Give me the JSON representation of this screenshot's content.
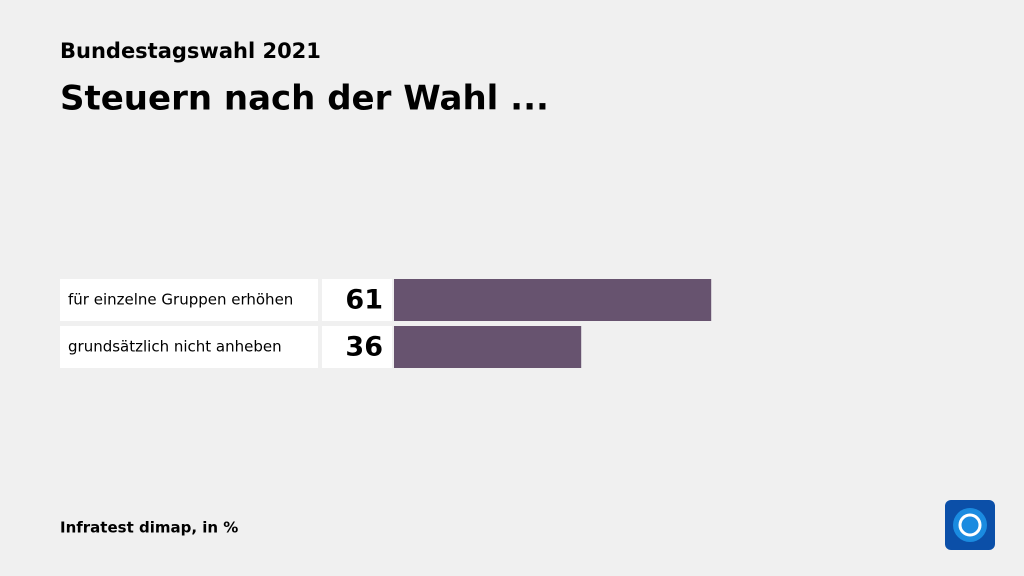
{
  "chart_data": {
    "type": "bar",
    "orientation": "horizontal",
    "supertitle": "Bundestagswahl 2021",
    "title": "Steuern nach der Wahl ...",
    "categories": [
      "für einzelne Gruppen erhöhen",
      "grundsätzlich nicht anheben"
    ],
    "values": [
      61,
      36
    ],
    "color": "#67536f",
    "source": "Infratest dimap, in %"
  }
}
